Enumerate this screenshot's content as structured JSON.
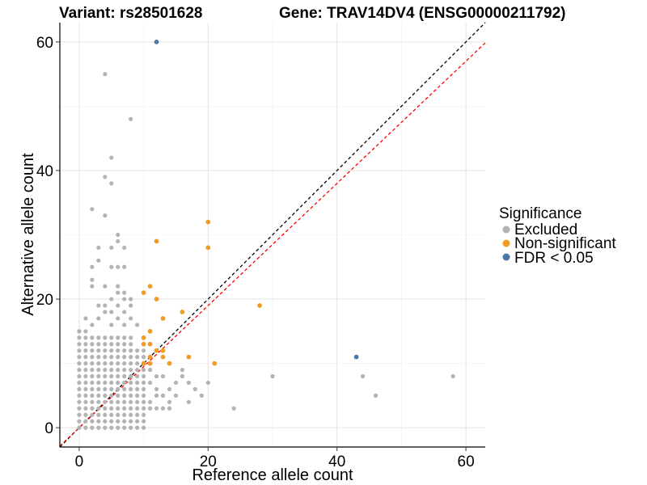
{
  "chart_data": {
    "type": "scatter",
    "title_left": "Variant: rs28501628",
    "title_right": "Gene: TRAV14DV4 (ENSG00000211792)",
    "xlabel": "Reference allele count",
    "ylabel": "Alternative allele count",
    "xlim": [
      -3,
      63
    ],
    "ylim": [
      -3,
      63
    ],
    "xticks": [
      0,
      20,
      40,
      60
    ],
    "yticks": [
      0,
      20,
      40,
      60
    ],
    "grid": true,
    "legend": {
      "title": "Significance",
      "position": "right",
      "entries": [
        {
          "label": "Excluded",
          "color": "#b3b3b3"
        },
        {
          "label": "Non-significant",
          "color": "#f39c1e"
        },
        {
          "label": "FDR < 0.05",
          "color": "#4a78a8"
        }
      ]
    },
    "reference_lines": [
      {
        "name": "identity",
        "slope": 1,
        "intercept": 0,
        "color": "#000000",
        "style": "dashed"
      },
      {
        "name": "expected",
        "slope": 0.95,
        "intercept": 0,
        "color": "#ff0000",
        "style": "dashed"
      }
    ],
    "dense_cluster": {
      "category": "Excluded",
      "x_range": [
        0,
        10
      ],
      "y_range": [
        0,
        15
      ],
      "description_only_for_rendering": false
    },
    "series": [
      {
        "name": "Excluded",
        "color": "#b3b3b3",
        "points": [
          [
            4,
            55
          ],
          [
            8,
            48
          ],
          [
            5,
            42
          ],
          [
            4,
            39
          ],
          [
            5,
            38
          ],
          [
            2,
            34
          ],
          [
            4,
            33
          ],
          [
            6,
            30
          ],
          [
            6,
            29
          ],
          [
            5,
            28
          ],
          [
            3,
            28
          ],
          [
            7,
            28
          ],
          [
            3,
            26
          ],
          [
            2,
            25
          ],
          [
            5,
            25
          ],
          [
            6,
            25
          ],
          [
            7,
            25
          ],
          [
            2,
            23
          ],
          [
            2,
            22
          ],
          [
            4,
            22
          ],
          [
            6,
            22
          ],
          [
            7,
            21
          ],
          [
            6,
            21
          ],
          [
            5,
            20
          ],
          [
            7,
            20
          ],
          [
            8,
            20
          ],
          [
            4,
            19
          ],
          [
            6,
            19
          ],
          [
            8,
            19
          ],
          [
            3,
            19
          ],
          [
            4,
            18
          ],
          [
            5,
            18
          ],
          [
            7,
            18
          ],
          [
            3,
            17
          ],
          [
            6,
            17
          ],
          [
            8,
            17
          ],
          [
            1,
            17
          ],
          [
            5,
            16
          ],
          [
            7,
            16
          ],
          [
            2,
            16
          ],
          [
            9,
            16
          ],
          [
            0,
            15
          ],
          [
            24,
            3
          ],
          [
            30,
            8
          ],
          [
            44,
            8
          ],
          [
            46,
            5
          ],
          [
            58,
            8
          ],
          [
            16,
            9
          ],
          [
            16,
            8
          ],
          [
            17,
            7
          ],
          [
            18,
            6
          ],
          [
            17,
            4
          ],
          [
            19,
            5
          ],
          [
            20,
            7
          ],
          [
            15,
            7
          ],
          [
            14,
            6
          ],
          [
            15,
            5
          ],
          [
            14,
            4
          ],
          [
            13,
            3
          ],
          [
            12,
            3
          ],
          [
            11,
            3
          ],
          [
            14,
            3
          ],
          [
            11,
            4
          ],
          [
            12,
            5
          ],
          [
            13,
            5
          ],
          [
            12,
            6
          ],
          [
            11,
            7
          ],
          [
            13,
            8
          ],
          [
            12,
            8
          ],
          [
            11,
            9
          ]
        ]
      },
      {
        "name": "Non-significant",
        "color": "#f39c1e",
        "points": [
          [
            20,
            32
          ],
          [
            12,
            29
          ],
          [
            20,
            28
          ],
          [
            28,
            19
          ],
          [
            11,
            22
          ],
          [
            10,
            21
          ],
          [
            12,
            20
          ],
          [
            16,
            18
          ],
          [
            13,
            17
          ],
          [
            11,
            15
          ],
          [
            10,
            14
          ],
          [
            10,
            13
          ],
          [
            11,
            13
          ],
          [
            12,
            12
          ],
          [
            13,
            12
          ],
          [
            13,
            11
          ],
          [
            17,
            11
          ],
          [
            11,
            11
          ],
          [
            14,
            10
          ],
          [
            21,
            10
          ],
          [
            10,
            10
          ],
          [
            11,
            10
          ]
        ]
      },
      {
        "name": "FDR < 0.05",
        "color": "#4a78a8",
        "points": [
          [
            12,
            60
          ],
          [
            43,
            11
          ]
        ]
      }
    ]
  }
}
